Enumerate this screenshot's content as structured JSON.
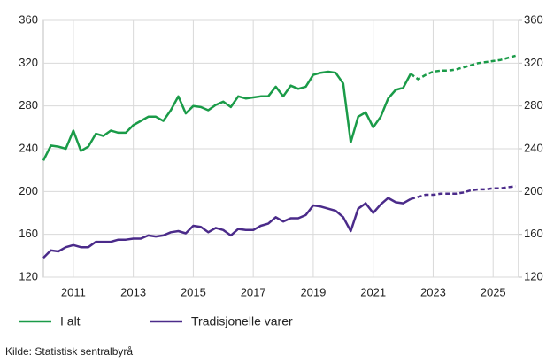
{
  "chart_data": {
    "type": "line",
    "x": [
      2010,
      2010.25,
      2010.5,
      2010.75,
      2011,
      2011.25,
      2011.5,
      2011.75,
      2012,
      2012.25,
      2012.5,
      2012.75,
      2013,
      2013.25,
      2013.5,
      2013.75,
      2014,
      2014.25,
      2014.5,
      2014.75,
      2015,
      2015.25,
      2015.5,
      2015.75,
      2016,
      2016.25,
      2016.5,
      2016.75,
      2017,
      2017.25,
      2017.5,
      2017.75,
      2018,
      2018.25,
      2018.5,
      2018.75,
      2019,
      2019.25,
      2019.5,
      2019.75,
      2020,
      2020.25,
      2020.5,
      2020.75,
      2021,
      2021.25,
      2021.5,
      2021.75,
      2022,
      2022.25,
      2022.5,
      2022.75,
      2023,
      2023.25,
      2023.5,
      2023.75,
      2024,
      2024.25,
      2024.5,
      2024.75,
      2025,
      2025.25,
      2025.5,
      2025.75
    ],
    "series": [
      {
        "name": "I alt",
        "color": "#1a9b48",
        "values": [
          229,
          243,
          242,
          240,
          257,
          238,
          242,
          254,
          252,
          257,
          255,
          255,
          262,
          266,
          270,
          270,
          266,
          276,
          289,
          273,
          280,
          279,
          276,
          281,
          284,
          279,
          289,
          287,
          288,
          289,
          289,
          298,
          289,
          299,
          296,
          298,
          309,
          311,
          312,
          311,
          301,
          246,
          270,
          274,
          260,
          270,
          287,
          295,
          297,
          310,
          305,
          309,
          312,
          313,
          313,
          314,
          316,
          318,
          320,
          321,
          322,
          323,
          325,
          327
        ]
      },
      {
        "name": "Tradisjonelle varer",
        "color": "#4b2b8a",
        "values": [
          138,
          145,
          144,
          148,
          150,
          148,
          148,
          153,
          153,
          153,
          155,
          155,
          156,
          156,
          159,
          158,
          159,
          162,
          163,
          161,
          168,
          167,
          162,
          166,
          164,
          159,
          165,
          164,
          164,
          168,
          170,
          176,
          172,
          175,
          175,
          178,
          187,
          186,
          184,
          182,
          176,
          163,
          184,
          189,
          180,
          188,
          194,
          190,
          189,
          193,
          195,
          197,
          197,
          198,
          198,
          198,
          199,
          201,
          202,
          202,
          203,
          203,
          204,
          205
        ]
      }
    ],
    "forecast_x": 2022.25,
    "xlim": [
      2010,
      2025.85
    ],
    "xticks": [
      2011,
      2013,
      2015,
      2017,
      2019,
      2021,
      2023,
      2025
    ],
    "ylim": [
      120,
      360
    ],
    "yticks": [
      120,
      160,
      200,
      240,
      280,
      320,
      360
    ],
    "y2lim": [
      120,
      360
    ],
    "y2ticks": [
      120,
      160,
      200,
      240,
      280,
      320,
      360
    ],
    "grid": true,
    "source": "Kilde: Statistisk sentralbyrå"
  }
}
